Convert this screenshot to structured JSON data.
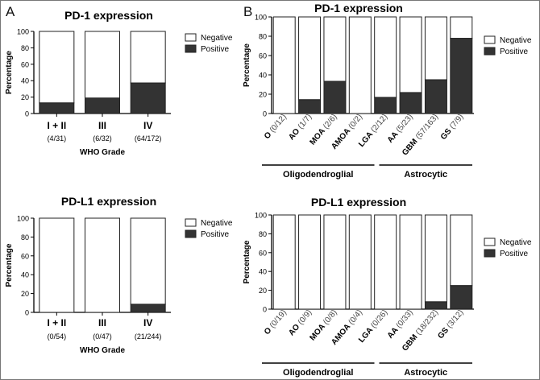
{
  "panel_labels": {
    "a": "A",
    "b": "B"
  },
  "colors": {
    "negative": "#ffffff",
    "positive": "#333333",
    "stroke": "#222222"
  },
  "chart_data": [
    {
      "id": "a1",
      "type": "bar",
      "stacked": true,
      "title": "PD-1 expression",
      "xlabel": "WHO Grade",
      "ylabel": "Percentage",
      "ylim": [
        0,
        100
      ],
      "yticks": [
        0,
        20,
        40,
        60,
        80,
        100
      ],
      "categories": [
        "I + II",
        "III",
        "IV"
      ],
      "counts": [
        "(4/31)",
        "(6/32)",
        "(64/172)"
      ],
      "series": [
        {
          "name": "Negative",
          "values": [
            87.1,
            81.2,
            62.8
          ]
        },
        {
          "name": "Positive",
          "values": [
            12.9,
            18.8,
            37.2
          ]
        }
      ],
      "legend_position": "right"
    },
    {
      "id": "a2",
      "type": "bar",
      "stacked": true,
      "title": "PD-L1 expression",
      "xlabel": "WHO Grade",
      "ylabel": "Percentage",
      "ylim": [
        0,
        100
      ],
      "yticks": [
        0,
        20,
        40,
        60,
        80,
        100
      ],
      "categories": [
        "I + II",
        "III",
        "IV"
      ],
      "counts": [
        "(0/54)",
        "(0/47)",
        "(21/244)"
      ],
      "series": [
        {
          "name": "Negative",
          "values": [
            100,
            100,
            91.4
          ]
        },
        {
          "name": "Positive",
          "values": [
            0,
            0,
            8.6
          ]
        }
      ],
      "legend_position": "right"
    },
    {
      "id": "b1",
      "type": "bar",
      "stacked": true,
      "title": "PD-1 expression",
      "ylabel": "Percentage",
      "ylim": [
        0,
        100
      ],
      "yticks": [
        0,
        20,
        40,
        60,
        80,
        100
      ],
      "categories": [
        "O",
        "AO",
        "MOA",
        "AMOA",
        "LGA",
        "AA",
        "GBM",
        "GS"
      ],
      "counts": [
        "(0/12)",
        "(1/7)",
        "(2/6)",
        "(0/2)",
        "(2/12)",
        "(5/23)",
        "(57/163)",
        "(7/9)"
      ],
      "series": [
        {
          "name": "Negative",
          "values": [
            100,
            85.7,
            66.7,
            100,
            83.3,
            78.3,
            65.0,
            22.2
          ]
        },
        {
          "name": "Positive",
          "values": [
            0,
            14.3,
            33.3,
            0,
            16.7,
            21.7,
            35.0,
            77.8
          ]
        }
      ],
      "groups": [
        {
          "label": "Oligodendroglial",
          "from": 0,
          "to": 3
        },
        {
          "label": "Astrocytic",
          "from": 4,
          "to": 7
        }
      ],
      "legend_position": "right"
    },
    {
      "id": "b2",
      "type": "bar",
      "stacked": true,
      "title": "PD-L1 expression",
      "ylabel": "Percentage",
      "ylim": [
        0,
        100
      ],
      "yticks": [
        0,
        20,
        40,
        60,
        80,
        100
      ],
      "categories": [
        "O",
        "AO",
        "MOA",
        "AMOA",
        "LGA",
        "AA",
        "GBM",
        "GS"
      ],
      "counts": [
        "(0/19)",
        "(0/9)",
        "(0/8)",
        "(0/4)",
        "(0/26)",
        "(0/33)",
        "(18/232)",
        "(3/12)"
      ],
      "series": [
        {
          "name": "Negative",
          "values": [
            100,
            100,
            100,
            100,
            100,
            100,
            92.2,
            75.0
          ]
        },
        {
          "name": "Positive",
          "values": [
            0,
            0,
            0,
            0,
            0,
            0,
            7.8,
            25.0
          ]
        }
      ],
      "groups": [
        {
          "label": "Oligodendroglial",
          "from": 0,
          "to": 3
        },
        {
          "label": "Astrocytic",
          "from": 4,
          "to": 7
        }
      ],
      "legend_position": "right"
    }
  ]
}
